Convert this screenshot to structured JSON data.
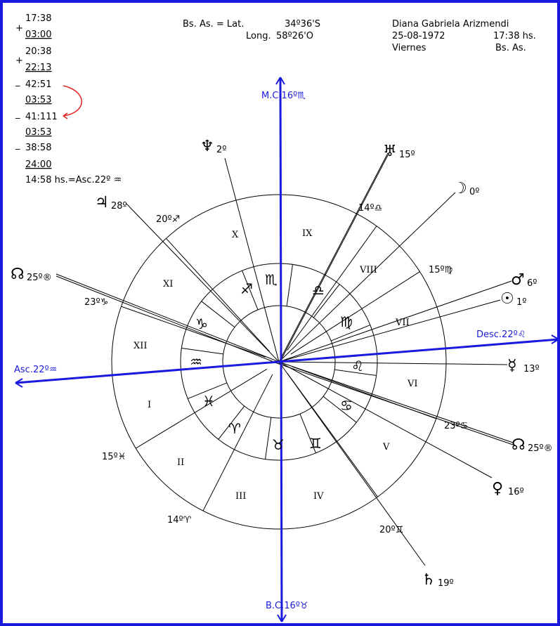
{
  "calc": [
    "17:38",
    "+",
    "03:00",
    "20:38",
    "+",
    "22:13",
    "_",
    "42:51",
    "03:53",
    "_",
    "41:111",
    "03:53",
    "_",
    "38:58",
    "24:00",
    "14:58 hs.=Asc.22º ♒"
  ],
  "header": {
    "lat_label": "Bs. As. = Lat.",
    "lat": "34º36'S",
    "long_label": "Long.",
    "long": "58º26'O"
  },
  "person": {
    "name": "Diana Gabriela Arizmendi",
    "date": "25-08-1972",
    "time": "17:38 hs.",
    "day": "Viernes",
    "place": "Bs. As."
  },
  "angles": {
    "mc": "M.C.16º♏",
    "bc": "B.C.16º♉",
    "asc": "Asc.22º♒",
    "desc": "Desc.22º♌"
  },
  "houses": [
    "I",
    "II",
    "III",
    "IV",
    "V",
    "VI",
    "VII",
    "VIII",
    "IX",
    "X",
    "XI",
    "XII"
  ],
  "cusps": [
    "15º♓",
    "14º♈",
    "20º♊",
    "23º♋",
    "15º♍",
    "14º♎",
    "20º♐",
    "23º♑"
  ],
  "signs": [
    "♏",
    "♎",
    "♍",
    "♌",
    "♋",
    "♊",
    "♉",
    "♈",
    "♓",
    "♒",
    "♑",
    "♐"
  ],
  "planets": [
    {
      "glyph": "♆",
      "degree": "2º"
    },
    {
      "glyph": "♅",
      "degree": "15º"
    },
    {
      "glyph": "☽",
      "degree": "0º"
    },
    {
      "glyph": "♂",
      "degree": "6º"
    },
    {
      "glyph": "☉",
      "degree": "1º"
    },
    {
      "glyph": "☿",
      "degree": "13º"
    },
    {
      "glyph": "♀",
      "degree": "16º"
    },
    {
      "glyph": "♄",
      "degree": "19º"
    },
    {
      "glyph": "♃",
      "degree": "28º"
    },
    {
      "glyph": "☊",
      "degree": "25º®"
    },
    {
      "glyph": "☊",
      "degree": "25º®"
    }
  ]
}
